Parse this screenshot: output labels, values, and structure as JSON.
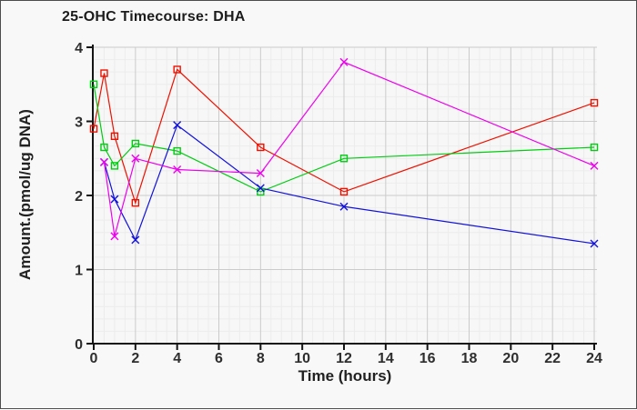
{
  "palette": {
    "background": "#f8f8f8",
    "plot_background": "#f7f7f7",
    "frame_border": "#4d4d4d",
    "grid_major": "#cbcbcb",
    "grid_minor": "#ececec",
    "axis": "#141414",
    "tick_text": "#2e2e2e",
    "title_text": "#1c1c1c"
  },
  "chart_data": {
    "type": "line",
    "title": "25-OHC Timecourse: DHA",
    "xlabel": "Time (hours)",
    "ylabel": "Amount.(pmol/ug DNA)",
    "xlim": [
      0,
      24
    ],
    "ylim": [
      0,
      4
    ],
    "x_tick_values": [
      0,
      2,
      4,
      6,
      8,
      10,
      12,
      14,
      16,
      18,
      20,
      22,
      24
    ],
    "x_tick_labels": [
      "0",
      "2",
      "4",
      "6",
      "8",
      "10",
      "12",
      "14",
      "16",
      "18",
      "20",
      "22",
      "24"
    ],
    "y_tick_values": [
      0,
      1,
      2,
      3,
      4
    ],
    "y_tick_labels": [
      "0",
      "1",
      "2",
      "3",
      "4"
    ],
    "x_minor_step": 0.5,
    "y_minor_divisions_per_unit": 6,
    "grid": "on",
    "legend": "none",
    "series": [
      {
        "name": "red-open-squares",
        "color": "#ee1100",
        "marker": "square-open",
        "x": [
          0,
          0.5,
          1,
          2,
          4,
          8,
          12,
          24
        ],
        "y": [
          2.9,
          3.65,
          2.8,
          1.9,
          3.7,
          2.65,
          2.05,
          3.25
        ]
      },
      {
        "name": "green-open-squares",
        "color": "#00cc11",
        "marker": "square-open",
        "x": [
          0,
          0.5,
          1,
          2,
          4,
          8,
          12,
          24
        ],
        "y": [
          3.5,
          2.65,
          2.4,
          2.7,
          2.6,
          2.05,
          2.5,
          2.65
        ]
      },
      {
        "name": "blue-x-marks",
        "color": "#1111dd",
        "marker": "x",
        "x": [
          0.5,
          1,
          2,
          4,
          8,
          12,
          24
        ],
        "y": [
          2.45,
          1.95,
          1.4,
          2.95,
          2.1,
          1.85,
          1.35
        ]
      },
      {
        "name": "magenta-x-marks",
        "color": "#ee00ee",
        "marker": "x",
        "x": [
          0.5,
          1,
          2,
          4,
          8,
          12,
          24
        ],
        "y": [
          2.45,
          1.45,
          2.5,
          2.35,
          2.3,
          3.8,
          2.4
        ]
      }
    ]
  }
}
